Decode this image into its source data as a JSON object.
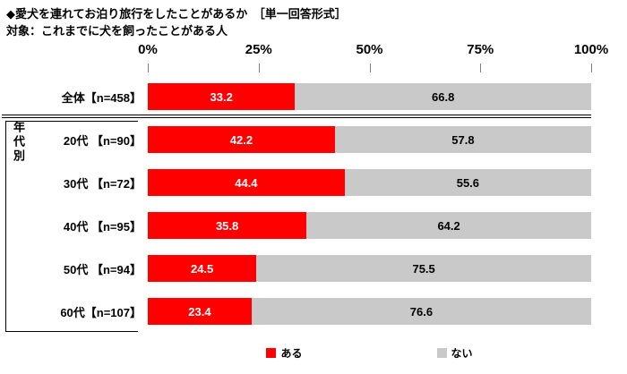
{
  "header": {
    "title": "◆愛犬を連れてお泊り旅行をしたことがあるか　［単一回答形式］",
    "subtitle": "対象：これまでに犬を飼ったことがある人"
  },
  "group_label": "年代別",
  "legend": [
    {
      "label": "ある",
      "color": "#FF0000"
    },
    {
      "label": "ない",
      "color": "#C9C9C9"
    }
  ],
  "chart_data": {
    "type": "bar",
    "orientation": "horizontal",
    "stacked": true,
    "title": "◆愛犬を連れてお泊り旅行をしたことがあるか　［単一回答形式］",
    "subtitle": "対象：これまでに犬を飼ったことがある人",
    "categories": [
      "全体【n=458】",
      "20代 【n=90】",
      "30代 【n=72】",
      "40代 【n=95】",
      "50代 【n=94】",
      "60代【n=107】"
    ],
    "series": [
      {
        "name": "ある",
        "color": "#FF0000",
        "text_color": "#FFFFFF",
        "values": [
          33.2,
          42.2,
          44.4,
          35.8,
          24.5,
          23.4
        ]
      },
      {
        "name": "ない",
        "color": "#C9C9C9",
        "text_color": "#000000",
        "values": [
          66.8,
          57.8,
          55.6,
          64.2,
          75.5,
          76.6
        ]
      }
    ],
    "xlim": [
      0,
      100
    ],
    "x_ticks": [
      "0%",
      "25%",
      "50%",
      "75%",
      "100%"
    ],
    "legend_position": "bottom",
    "grid": false,
    "group_label": "年代別"
  }
}
